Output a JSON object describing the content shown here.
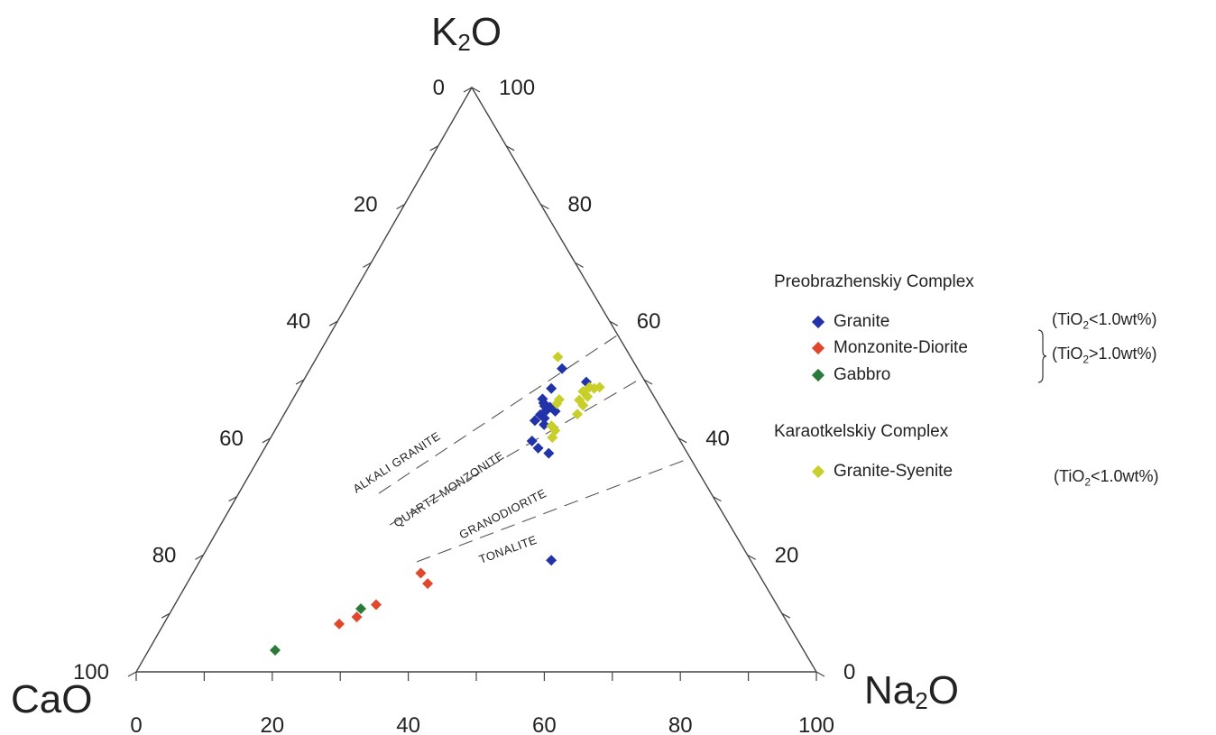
{
  "chart_data": {
    "type": "ternary-scatter",
    "apices": {
      "top": {
        "label": "K",
        "sub": "2",
        "tail": "O"
      },
      "left": {
        "label": "CaO",
        "sub": "",
        "tail": ""
      },
      "right": {
        "label": "Na",
        "sub": "2",
        "tail": "O"
      }
    },
    "axis_ticks": [
      0,
      20,
      40,
      60,
      80,
      100
    ],
    "left_axis_tick_labels": [
      "0",
      "20",
      "40",
      "60",
      "80",
      "100"
    ],
    "right_axis_tick_labels": [
      "100",
      "80",
      "60",
      "40",
      "20",
      "0"
    ],
    "bottom_axis_tick_labels": [
      "0",
      "20",
      "40",
      "60",
      "80",
      "100"
    ],
    "field_labels": [
      "ALKALI GRANITE",
      "QUARTZ MONZONITE",
      "GRANODIORITE",
      "TONALITE"
    ],
    "colors": {
      "granite": "#2233aa",
      "monzonite_diorite": "#e0472b",
      "gabbro": "#2a7a3a",
      "granite_syenite": "#c8cf2a",
      "axis": "#444444",
      "dashed": "#555555"
    },
    "series": [
      {
        "key": "granite",
        "name": "Granite",
        "points": [
          {
            "K2O": 51.9,
            "Na2O": 37.0,
            "CaO": 11.1
          },
          {
            "K2O": 48.5,
            "Na2O": 37.1,
            "CaO": 14.4
          },
          {
            "K2O": 46.7,
            "Na2O": 36.7,
            "CaO": 16.6
          },
          {
            "K2O": 46.0,
            "Na2O": 37.2,
            "CaO": 16.8
          },
          {
            "K2O": 45.5,
            "Na2O": 37.6,
            "CaO": 16.9
          },
          {
            "K2O": 45.3,
            "Na2O": 38.5,
            "CaO": 16.2
          },
          {
            "K2O": 44.7,
            "Na2O": 38.2,
            "CaO": 17.1
          },
          {
            "K2O": 44.6,
            "Na2O": 39.6,
            "CaO": 15.8
          },
          {
            "K2O": 44.0,
            "Na2O": 37.7,
            "CaO": 18.3
          },
          {
            "K2O": 43.4,
            "Na2O": 38.6,
            "CaO": 18.0
          },
          {
            "K2O": 43.0,
            "Na2O": 37.4,
            "CaO": 19.6
          },
          {
            "K2O": 42.3,
            "Na2O": 39.1,
            "CaO": 18.6
          },
          {
            "K2O": 39.5,
            "Na2O": 38.7,
            "CaO": 21.8
          },
          {
            "K2O": 38.3,
            "Na2O": 40.2,
            "CaO": 21.5
          },
          {
            "K2O": 37.4,
            "Na2O": 42.2,
            "CaO": 20.4
          },
          {
            "K2O": 49.6,
            "Na2O": 41.7,
            "CaO": 8.7
          },
          {
            "K2O": 19.1,
            "Na2O": 51.6,
            "CaO": 29.3
          }
        ]
      },
      {
        "key": "monzonite_diorite",
        "name": "Monzonite-Diorite",
        "points": [
          {
            "K2O": 16.9,
            "Na2O": 33.5,
            "CaO": 49.6
          },
          {
            "K2O": 15.1,
            "Na2O": 35.4,
            "CaO": 49.5
          },
          {
            "K2O": 11.5,
            "Na2O": 29.6,
            "CaO": 58.9
          },
          {
            "K2O": 9.4,
            "Na2O": 27.8,
            "CaO": 62.8
          },
          {
            "K2O": 8.2,
            "Na2O": 25.8,
            "CaO": 66.0
          }
        ]
      },
      {
        "key": "gabbro",
        "name": "Gabbro",
        "points": [
          {
            "K2O": 10.8,
            "Na2O": 27.7,
            "CaO": 61.5
          },
          {
            "K2O": 3.7,
            "Na2O": 18.6,
            "CaO": 77.7
          }
        ]
      },
      {
        "key": "granite_syenite",
        "name": "Granite-Syenite",
        "points": [
          {
            "K2O": 53.9,
            "Na2O": 35.4,
            "CaO": 10.7
          },
          {
            "K2O": 48.7,
            "Na2O": 42.6,
            "CaO": 8.7
          },
          {
            "K2O": 48.7,
            "Na2O": 44.1,
            "CaO": 7.2
          },
          {
            "K2O": 48.5,
            "Na2O": 43.4,
            "CaO": 8.1
          },
          {
            "K2O": 48.0,
            "Na2O": 42.0,
            "CaO": 10.0
          },
          {
            "K2O": 47.1,
            "Na2O": 43.1,
            "CaO": 9.8
          },
          {
            "K2O": 46.5,
            "Na2O": 42.2,
            "CaO": 11.3
          },
          {
            "K2O": 46.6,
            "Na2O": 39.2,
            "CaO": 14.2
          },
          {
            "K2O": 45.9,
            "Na2O": 39.2,
            "CaO": 14.9
          },
          {
            "K2O": 45.6,
            "Na2O": 43.2,
            "CaO": 11.2
          },
          {
            "K2O": 44.1,
            "Na2O": 43.1,
            "CaO": 12.8
          },
          {
            "K2O": 42.1,
            "Na2O": 40.3,
            "CaO": 17.6
          },
          {
            "K2O": 41.3,
            "Na2O": 41.2,
            "CaO": 17.5
          },
          {
            "K2O": 40.1,
            "Na2O": 41.4,
            "CaO": 18.5
          }
        ]
      }
    ],
    "legend": {
      "groups": [
        {
          "title": "Preobrazhenskiy Complex",
          "items": [
            {
              "label": "Granite",
              "series": "granite"
            },
            {
              "label": "Monzonite-Diorite",
              "series": "monzonite_diorite"
            },
            {
              "label": "Gabbro",
              "series": "gabbro"
            }
          ]
        },
        {
          "title": "Karaotkelskiy Complex",
          "items": [
            {
              "label": "Granite-Syenite",
              "series": "granite_syenite"
            }
          ]
        }
      ],
      "notes": [
        {
          "pre": "(TiO",
          "sub": "2",
          "post": "<1.0wt%)"
        },
        {
          "pre": "(TiO",
          "sub": "2",
          "post": ">1.0wt%)"
        },
        {
          "pre": "(TiO",
          "sub": "2",
          "post": "<1.0wt%)"
        }
      ]
    }
  }
}
